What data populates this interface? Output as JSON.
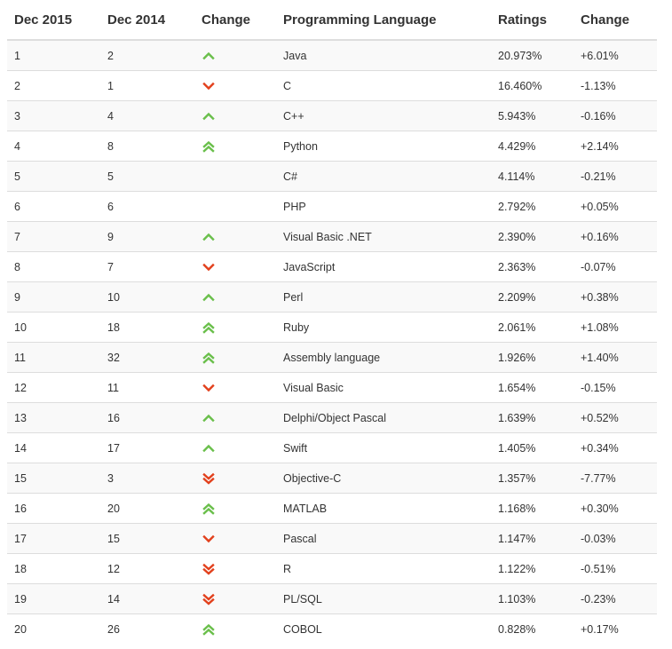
{
  "table": {
    "headers": [
      "Dec 2015",
      "Dec 2014",
      "Change",
      "Programming Language",
      "Ratings",
      "Change"
    ],
    "colors": {
      "up": "#6abf4b",
      "down": "#e2401c"
    },
    "rows": [
      {
        "dec2015": "1",
        "dec2014": "2",
        "trend": "up",
        "language": "Java",
        "rating": "20.973%",
        "change": "+6.01%"
      },
      {
        "dec2015": "2",
        "dec2014": "1",
        "trend": "down",
        "language": "C",
        "rating": "16.460%",
        "change": "-1.13%"
      },
      {
        "dec2015": "3",
        "dec2014": "4",
        "trend": "up",
        "language": "C++",
        "rating": "5.943%",
        "change": "-0.16%"
      },
      {
        "dec2015": "4",
        "dec2014": "8",
        "trend": "double-up",
        "language": "Python",
        "rating": "4.429%",
        "change": "+2.14%"
      },
      {
        "dec2015": "5",
        "dec2014": "5",
        "trend": "none",
        "language": "C#",
        "rating": "4.114%",
        "change": "-0.21%"
      },
      {
        "dec2015": "6",
        "dec2014": "6",
        "trend": "none",
        "language": "PHP",
        "rating": "2.792%",
        "change": "+0.05%"
      },
      {
        "dec2015": "7",
        "dec2014": "9",
        "trend": "up",
        "language": "Visual Basic .NET",
        "rating": "2.390%",
        "change": "+0.16%"
      },
      {
        "dec2015": "8",
        "dec2014": "7",
        "trend": "down",
        "language": "JavaScript",
        "rating": "2.363%",
        "change": "-0.07%"
      },
      {
        "dec2015": "9",
        "dec2014": "10",
        "trend": "up",
        "language": "Perl",
        "rating": "2.209%",
        "change": "+0.38%"
      },
      {
        "dec2015": "10",
        "dec2014": "18",
        "trend": "double-up",
        "language": "Ruby",
        "rating": "2.061%",
        "change": "+1.08%"
      },
      {
        "dec2015": "11",
        "dec2014": "32",
        "trend": "double-up",
        "language": "Assembly language",
        "rating": "1.926%",
        "change": "+1.40%"
      },
      {
        "dec2015": "12",
        "dec2014": "11",
        "trend": "down",
        "language": "Visual Basic",
        "rating": "1.654%",
        "change": "-0.15%"
      },
      {
        "dec2015": "13",
        "dec2014": "16",
        "trend": "up",
        "language": "Delphi/Object Pascal",
        "rating": "1.639%",
        "change": "+0.52%"
      },
      {
        "dec2015": "14",
        "dec2014": "17",
        "trend": "up",
        "language": "Swift",
        "rating": "1.405%",
        "change": "+0.34%"
      },
      {
        "dec2015": "15",
        "dec2014": "3",
        "trend": "double-down",
        "language": "Objective-C",
        "rating": "1.357%",
        "change": "-7.77%"
      },
      {
        "dec2015": "16",
        "dec2014": "20",
        "trend": "double-up",
        "language": "MATLAB",
        "rating": "1.168%",
        "change": "+0.30%"
      },
      {
        "dec2015": "17",
        "dec2014": "15",
        "trend": "down",
        "language": "Pascal",
        "rating": "1.147%",
        "change": "-0.03%"
      },
      {
        "dec2015": "18",
        "dec2014": "12",
        "trend": "double-down",
        "language": "R",
        "rating": "1.122%",
        "change": "-0.51%"
      },
      {
        "dec2015": "19",
        "dec2014": "14",
        "trend": "double-down",
        "language": "PL/SQL",
        "rating": "1.103%",
        "change": "-0.23%"
      },
      {
        "dec2015": "20",
        "dec2014": "26",
        "trend": "double-up",
        "language": "COBOL",
        "rating": "0.828%",
        "change": "+0.17%"
      }
    ]
  }
}
